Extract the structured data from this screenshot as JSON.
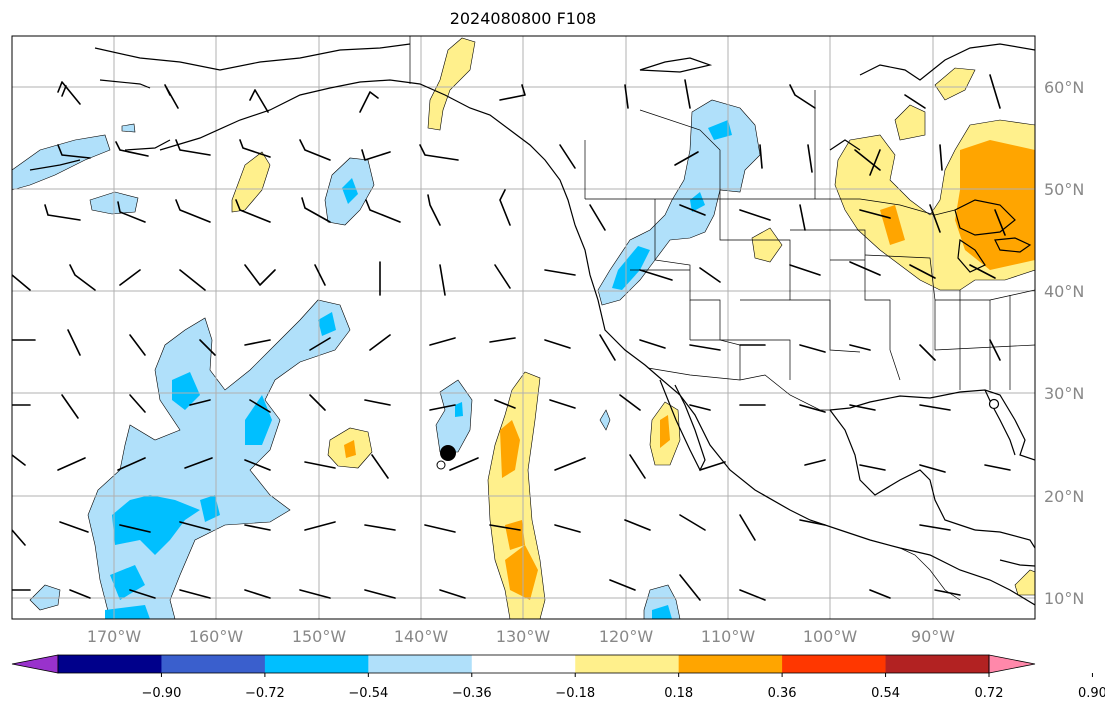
{
  "title": "2024080800 F108",
  "map": {
    "projection": "PlateCarree",
    "lon_range": [
      -180,
      -80
    ],
    "lat_range": [
      8,
      65
    ],
    "gridlines": true,
    "lon_labels": [
      "170°W",
      "160°W",
      "150°W",
      "140°W",
      "130°W",
      "120°W",
      "110°W",
      "100°W",
      "90°W"
    ],
    "lat_labels": [
      "60°N",
      "50°N",
      "40°N",
      "30°N",
      "20°N",
      "10°N"
    ],
    "markers": [
      {
        "type": "filled-circle",
        "lon": -137.3,
        "lat": 24.2
      },
      {
        "type": "open-circle",
        "lon": -138.2,
        "lat": 23.0
      },
      {
        "type": "open-circle",
        "lon": -83.8,
        "lat": 29.1
      }
    ]
  },
  "colorbar": {
    "extend": "both",
    "colors": [
      "#9932cc",
      "#00008b",
      "#3a5fcd",
      "#00bfff",
      "#b0e0fa",
      "#ffffff",
      "#fff08c",
      "#ffa500",
      "#ff3700",
      "#b22222",
      "#ff88aa"
    ],
    "tick_labels": [
      "−0.90",
      "−0.72",
      "−0.54",
      "−0.36",
      "−0.18",
      "0.18",
      "0.36",
      "0.54",
      "0.72",
      "0.90"
    ]
  },
  "fields": {
    "negative_regions": "light blue / blue anomalies over central Pacific, Great Basin and BC interior",
    "positive_regions": "yellow / orange anomalies along 130W, Gulf of California, Great Lakes"
  }
}
